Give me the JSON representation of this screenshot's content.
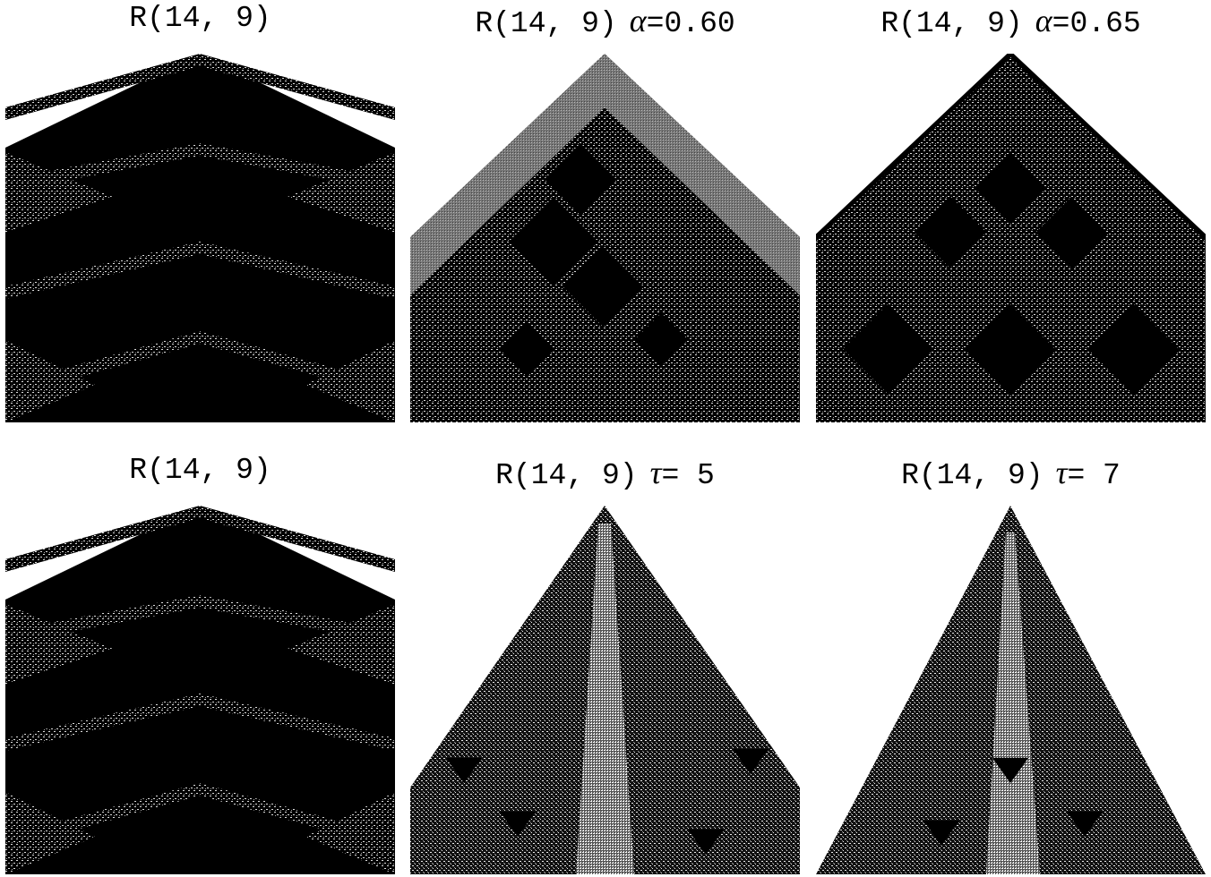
{
  "panels": [
    {
      "rule": "R(14, 9)"
    },
    {
      "rule": "R(14, 9)",
      "symbol": "α",
      "value": "=0.60"
    },
    {
      "rule": "R(14, 9)",
      "symbol": "α",
      "value": "=0.65"
    },
    {
      "rule": "R(14, 9)"
    },
    {
      "rule": "R(14, 9)",
      "symbol": "τ",
      "value": "= 5"
    },
    {
      "rule": "R(14, 9)",
      "symbol": "τ",
      "value": "= 7"
    }
  ]
}
